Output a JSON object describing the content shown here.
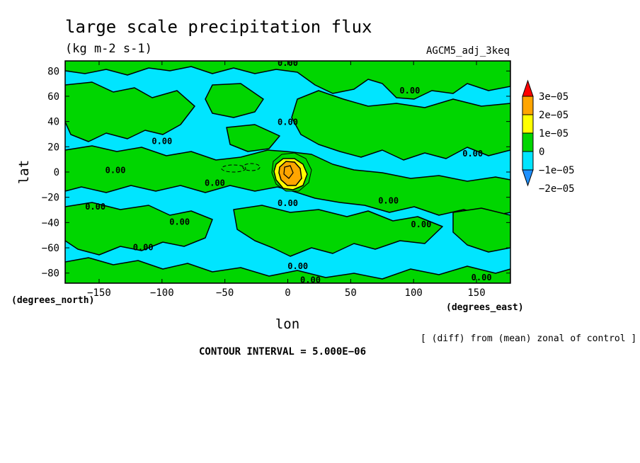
{
  "chart_data": {
    "type": "heatmap",
    "title": "large scale precipitation flux",
    "units": "(kg m-2 s-1)",
    "dataset": "AGCM5_adj_3keq",
    "xlabel": "lon",
    "ylabel": "lat",
    "x_units": "(degrees_east)",
    "y_units": "(degrees_north)",
    "x_ticks": [
      -150,
      -100,
      -50,
      0,
      50,
      100,
      150
    ],
    "x_tick_labels": [
      "−150",
      "−100",
      "−50",
      "0",
      "50",
      "100",
      "150"
    ],
    "y_ticks": [
      80,
      60,
      40,
      20,
      0,
      -20,
      -40,
      -60,
      -80
    ],
    "y_tick_labels": [
      "80",
      "60",
      "40",
      "20",
      "0",
      "−20",
      "−40",
      "−60",
      "−80"
    ],
    "xlim": [
      -177,
      177
    ],
    "ylim": [
      -88,
      88
    ],
    "colorbar": {
      "levels": [
        -2e-05,
        -1e-05,
        0,
        1e-05,
        2e-05,
        3e-05
      ],
      "level_labels": [
        "−2e−05",
        "−1e−05",
        "0",
        "1e−05",
        "2e−05",
        "3e−05"
      ],
      "colors": [
        "#1e90ff",
        "#00e5ff",
        "#00d600",
        "#ffff00",
        "#ffa500",
        "#ff0000"
      ],
      "under_color": "#1e90ff",
      "over_color": "#ff0000"
    },
    "background_level": "0 to 1e-05 (green) and -1e-05 to 0 (cyan) patches",
    "contour_labels": [
      {
        "lon": 0,
        "lat": 87,
        "text": "0.00"
      },
      {
        "lon": 0,
        "lat": 40,
        "text": "0.00"
      },
      {
        "lon": 97,
        "lat": 65,
        "text": "0.00"
      },
      {
        "lon": -137,
        "lat": 2,
        "text": "0.00"
      },
      {
        "lon": -100,
        "lat": 25,
        "text": "0.00"
      },
      {
        "lon": -58,
        "lat": -8,
        "text": "0.00"
      },
      {
        "lon": 0,
        "lat": -24,
        "text": "0.00"
      },
      {
        "lon": -153,
        "lat": -27,
        "text": "0.00"
      },
      {
        "lon": -86,
        "lat": -39,
        "text": "0.00"
      },
      {
        "lon": -115,
        "lat": -59,
        "text": "0.00"
      },
      {
        "lon": 8,
        "lat": -74,
        "text": "0.00"
      },
      {
        "lon": 18,
        "lat": -85,
        "text": "0.00"
      },
      {
        "lon": 80,
        "lat": -22,
        "text": "0.00"
      },
      {
        "lon": 147,
        "lat": 15,
        "text": "0.00"
      },
      {
        "lon": 106,
        "lat": -41,
        "text": "0.00"
      },
      {
        "lon": 154,
        "lat": -83,
        "text": "0.00"
      }
    ],
    "peak": {
      "lon": 0,
      "lat": 0,
      "approx_value": 2.5e-05
    },
    "grid": false
  },
  "footer": {
    "note": "[ (diff) from (mean) zonal of control ]",
    "contour_interval": "CONTOUR INTERVAL = 5.000E−06"
  }
}
